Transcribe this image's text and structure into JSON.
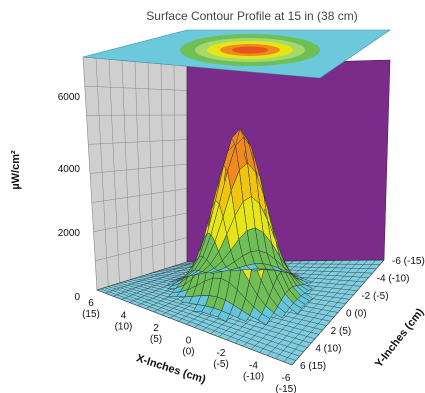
{
  "chart_data": {
    "type": "surface",
    "title": "Surface Contour Profile at 15 in (38 cm)",
    "xlabel": "X-Inches (cm)",
    "ylabel": "Y-Inches (cm)",
    "zlabel": "µW/cm²",
    "xticks": [
      "6 (15)",
      "4 (10)",
      "2 (5)",
      "0 (0)",
      "-2 (-5)",
      "-4 (-10)",
      "-6 (-15)"
    ],
    "yticks": [
      "6 (15)",
      "4 (10)",
      "2 (5)",
      "0 (0)",
      "-2 (-5)",
      "-4 (-10)",
      "-6 (-15)"
    ],
    "zticks": [
      "0",
      "2000",
      "4000",
      "6000"
    ],
    "xlim": [
      -6,
      6
    ],
    "ylim": [
      -6,
      6
    ],
    "zlim": [
      0,
      7000
    ],
    "peak_value": 5200,
    "peak_location": [
      0,
      0
    ],
    "contour_bands": [
      {
        "from": 0,
        "to": 300,
        "color": "#63c6da"
      },
      {
        "from": 300,
        "to": 1300,
        "color": "#6dbf56"
      },
      {
        "from": 1300,
        "to": 2300,
        "color": "#e6e617"
      },
      {
        "from": 2300,
        "to": 3300,
        "color": "#f1c40f"
      },
      {
        "from": 3300,
        "to": 6000,
        "color": "#f08a1c"
      },
      {
        "from": 6000,
        "to": 7000,
        "color": "#e8531f"
      }
    ],
    "projection_plane_color": "#6cc9db",
    "back_wall_color": "#7b2b8a",
    "side_wall_color": "#cfcfcf"
  }
}
